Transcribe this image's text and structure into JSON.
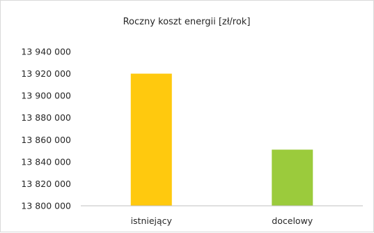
{
  "chart_data": {
    "type": "bar",
    "title": "Roczny koszt energii [zł/rok]",
    "categories": [
      "istniejący",
      "docelowy"
    ],
    "values": [
      13920000,
      13851000
    ],
    "colors": [
      "#FFC90E",
      "#9BCB3C"
    ],
    "ylim": [
      13800000,
      13940000
    ],
    "yticks": [
      13800000,
      13820000,
      13840000,
      13860000,
      13880000,
      13900000,
      13920000,
      13940000
    ],
    "ytick_labels": [
      "13 800 000",
      "13 820 000",
      "13 840 000",
      "13 860 000",
      "13 880 000",
      "13 900 000",
      "13 920 000",
      "13 940 000"
    ],
    "grid": false,
    "legend": false,
    "xlabel": "",
    "ylabel": ""
  }
}
